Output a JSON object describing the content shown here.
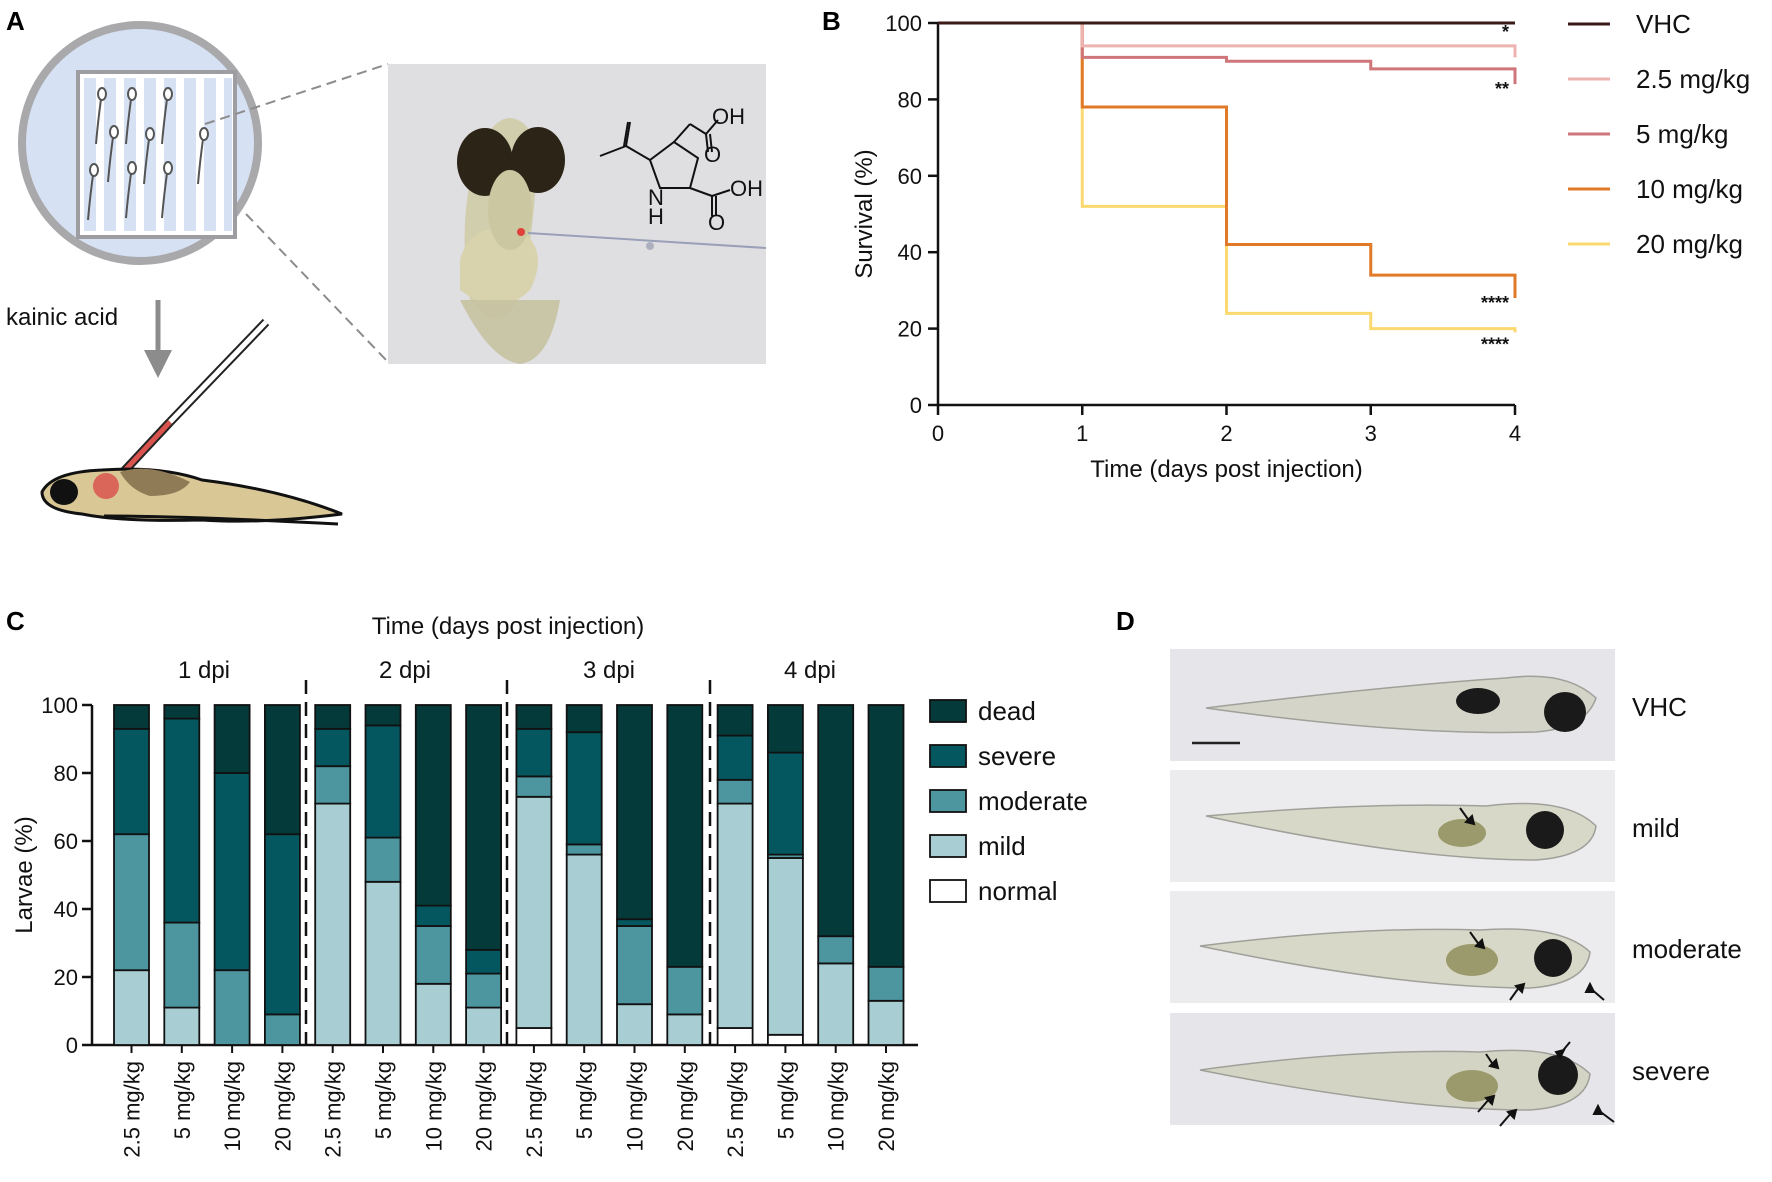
{
  "panels": {
    "A": "A",
    "B": "B",
    "C": "C",
    "D": "D"
  },
  "panel_a": {
    "treatment_label": "kainic acid",
    "molecule_labels": {
      "oh_top": "OH",
      "oh_bottom": "OH",
      "nh": "N",
      "h": "H",
      "o_top": "O",
      "o_bottom": "O"
    }
  },
  "panel_d": {
    "rows": [
      "VHC",
      "mild",
      "moderate",
      "severe"
    ]
  },
  "colors": {
    "VHC": "#3b1a18",
    "2.5 mg/kg": "#edb3b0",
    "5 mg/kg": "#cf767b",
    "10 mg/kg": "#e07a28",
    "20 mg/kg": "#fbd970",
    "dead": "#053a3a",
    "severe": "#05575f",
    "moderate": "#4d96a0",
    "mild": "#a8cdd2",
    "normal": "#ffffff"
  },
  "chart_data": [
    {
      "type": "line",
      "step": true,
      "xlabel": "Time (days post injection)",
      "ylabel": "Survival (%)",
      "xlim": [
        0,
        4
      ],
      "ylim": [
        0,
        100
      ],
      "xticks": [
        "0",
        "1",
        "2",
        "3",
        "4"
      ],
      "yticks": [
        "0",
        "20",
        "40",
        "60",
        "80",
        "100"
      ],
      "x": [
        0,
        1,
        2,
        3,
        4
      ],
      "legend_position": "right",
      "series": [
        {
          "name": "VHC",
          "values": [
            100,
            100,
            100,
            100,
            100
          ],
          "end_drop": 100,
          "sig": ""
        },
        {
          "name": "2.5 mg/kg",
          "values": [
            100,
            94,
            94,
            94,
            94
          ],
          "end_drop": 91,
          "sig": "*"
        },
        {
          "name": "5 mg/kg",
          "values": [
            100,
            91,
            90,
            88,
            88
          ],
          "end_drop": 84,
          "sig": "**"
        },
        {
          "name": "10 mg/kg",
          "values": [
            100,
            78,
            42,
            34,
            34
          ],
          "end_drop": 28,
          "sig": "****"
        },
        {
          "name": "20 mg/kg",
          "values": [
            100,
            52,
            24,
            20,
            20
          ],
          "end_drop": 19,
          "sig": "****"
        }
      ]
    },
    {
      "type": "bar",
      "stacked": true,
      "title": "Time (days post injection)",
      "ylabel": "Larvae (%)",
      "ylim": [
        0,
        100
      ],
      "yticks": [
        "0",
        "20",
        "40",
        "60",
        "80",
        "100"
      ],
      "groups": [
        "1 dpi",
        "2 dpi",
        "3 dpi",
        "4 dpi"
      ],
      "categories": [
        "2.5 mg/kg",
        "5 mg/kg",
        "10 mg/kg",
        "20 mg/kg"
      ],
      "legend_position": "right",
      "stack_order": [
        "normal",
        "mild",
        "moderate",
        "severe",
        "dead"
      ],
      "legend_order": [
        "dead",
        "severe",
        "moderate",
        "mild",
        "normal"
      ],
      "bars": [
        {
          "group": "1 dpi",
          "category": "2.5 mg/kg",
          "normal": 0,
          "mild": 22,
          "moderate": 40,
          "severe": 31,
          "dead": 7
        },
        {
          "group": "1 dpi",
          "category": "5 mg/kg",
          "normal": 0,
          "mild": 11,
          "moderate": 25,
          "severe": 60,
          "dead": 4
        },
        {
          "group": "1 dpi",
          "category": "10 mg/kg",
          "normal": 0,
          "mild": 0,
          "moderate": 22,
          "severe": 58,
          "dead": 20
        },
        {
          "group": "1 dpi",
          "category": "20 mg/kg",
          "normal": 0,
          "mild": 0,
          "moderate": 9,
          "severe": 53,
          "dead": 38
        },
        {
          "group": "2 dpi",
          "category": "2.5 mg/kg",
          "normal": 0,
          "mild": 71,
          "moderate": 11,
          "severe": 11,
          "dead": 7
        },
        {
          "group": "2 dpi",
          "category": "5 mg/kg",
          "normal": 0,
          "mild": 48,
          "moderate": 13,
          "severe": 33,
          "dead": 6
        },
        {
          "group": "2 dpi",
          "category": "10 mg/kg",
          "normal": 0,
          "mild": 18,
          "moderate": 17,
          "severe": 6,
          "dead": 59
        },
        {
          "group": "2 dpi",
          "category": "20 mg/kg",
          "normal": 0,
          "mild": 11,
          "moderate": 10,
          "severe": 7,
          "dead": 72
        },
        {
          "group": "3 dpi",
          "category": "2.5 mg/kg",
          "normal": 5,
          "mild": 68,
          "moderate": 6,
          "severe": 14,
          "dead": 7
        },
        {
          "group": "3 dpi",
          "category": "5 mg/kg",
          "normal": 0,
          "mild": 56,
          "moderate": 3,
          "severe": 33,
          "dead": 8
        },
        {
          "group": "3 dpi",
          "category": "10 mg/kg",
          "normal": 0,
          "mild": 12,
          "moderate": 23,
          "severe": 2,
          "dead": 63
        },
        {
          "group": "3 dpi",
          "category": "20 mg/kg",
          "normal": 0,
          "mild": 9,
          "moderate": 14,
          "severe": 0,
          "dead": 77
        },
        {
          "group": "4 dpi",
          "category": "2.5 mg/kg",
          "normal": 5,
          "mild": 66,
          "moderate": 7,
          "severe": 13,
          "dead": 9
        },
        {
          "group": "4 dpi",
          "category": "5 mg/kg",
          "normal": 3,
          "mild": 52,
          "moderate": 1,
          "severe": 30,
          "dead": 14
        },
        {
          "group": "4 dpi",
          "category": "10 mg/kg",
          "normal": 0,
          "mild": 24,
          "moderate": 8,
          "severe": 0,
          "dead": 68
        },
        {
          "group": "4 dpi",
          "category": "20 mg/kg",
          "normal": 0,
          "mild": 13,
          "moderate": 10,
          "severe": 0,
          "dead": 77
        }
      ]
    }
  ]
}
